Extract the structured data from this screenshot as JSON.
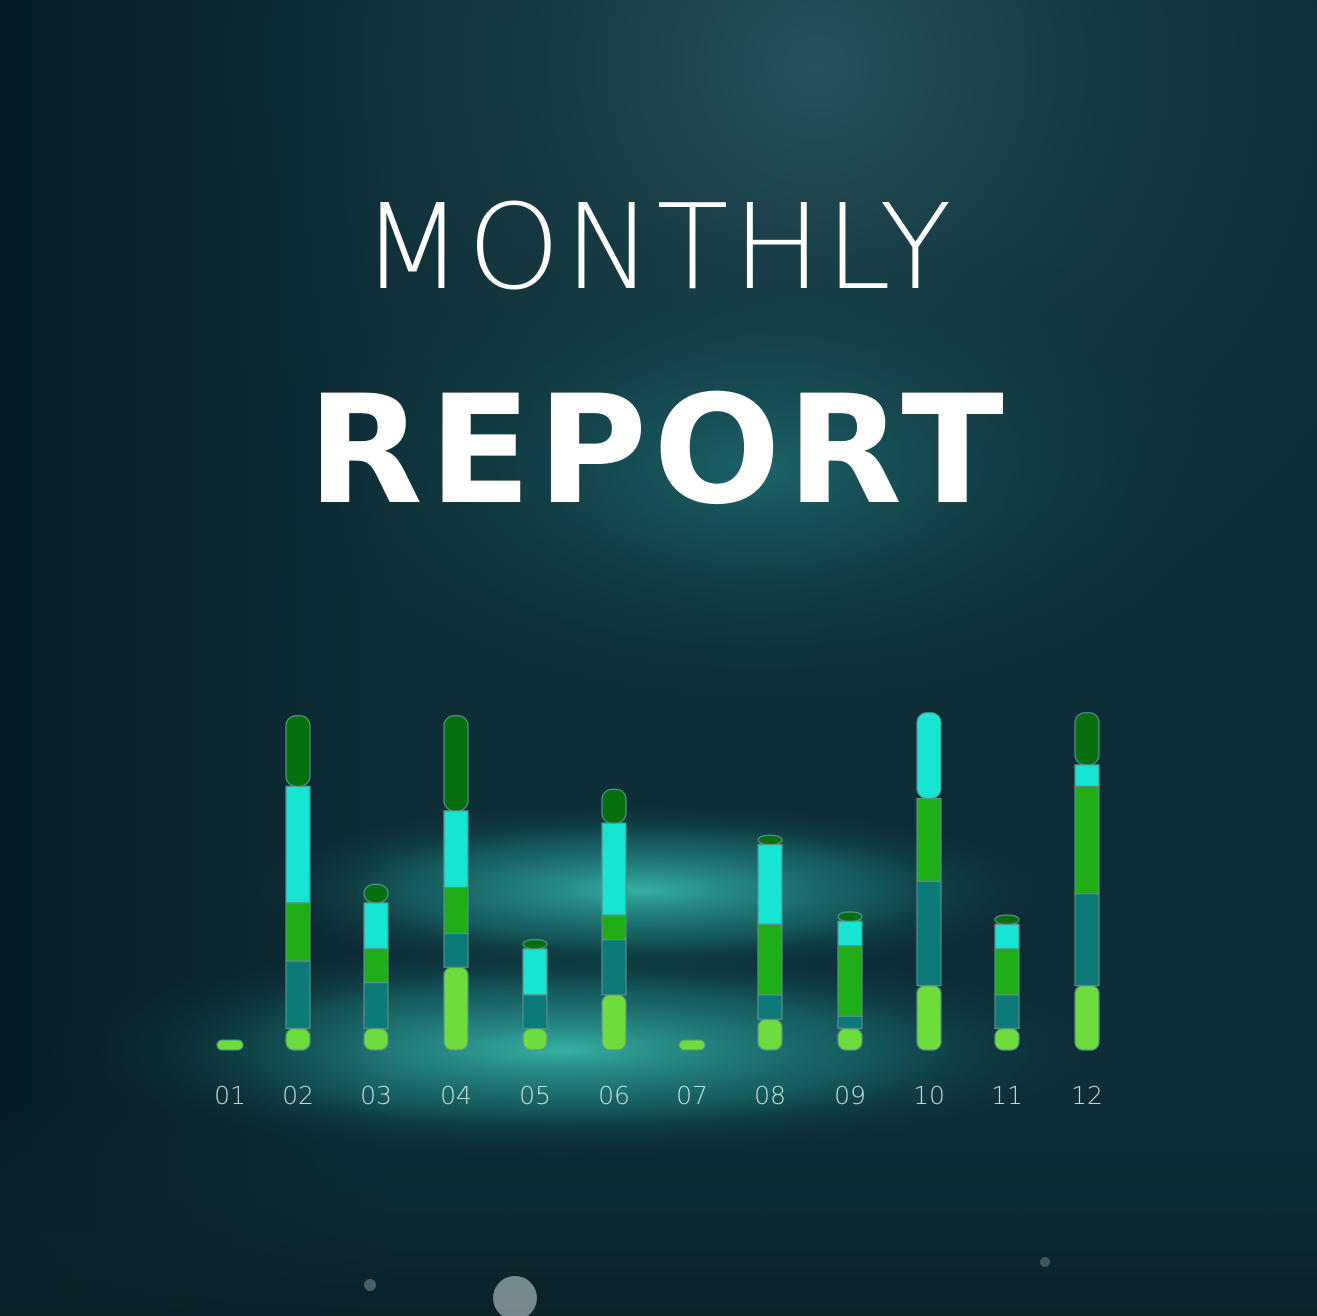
{
  "header": {
    "line1": "MONTHLY",
    "line2": "REPORT"
  },
  "colors": {
    "background": "#0b2a33",
    "glow": "#2bb3a3",
    "segment_light_green": "#6cdd3c",
    "segment_teal": "#0c7a78",
    "segment_green": "#1fae18",
    "segment_cyan": "#17e5d2",
    "segment_dark_green": "#06700f",
    "tick_label": "#e6f2f2"
  },
  "chart_data": {
    "type": "bar",
    "stacked": true,
    "categories": [
      "01",
      "02",
      "03",
      "04",
      "05",
      "06",
      "07",
      "08",
      "09",
      "10",
      "11",
      "12"
    ],
    "ylim": [
      0,
      12
    ],
    "series": [
      {
        "color": "#6cdd3c",
        "values": [
          0.2,
          0.7,
          0.7,
          2.7,
          0.7,
          1.8,
          0.2,
          1.0,
          0.7,
          2.1,
          0.7,
          2.1
        ]
      },
      {
        "color": "#0c7a78",
        "values": [
          0,
          2.2,
          1.5,
          1.1,
          1.1,
          1.8,
          0,
          0.8,
          0.4,
          3.4,
          1.1,
          3.0
        ]
      },
      {
        "color": "#1fae18",
        "values": [
          0,
          1.9,
          1.1,
          1.5,
          0,
          0.8,
          0,
          2.3,
          2.3,
          2.7,
          1.5,
          3.5
        ]
      },
      {
        "color": "#17e5d2",
        "values": [
          0,
          3.8,
          1.5,
          2.5,
          1.5,
          3.0,
          0,
          2.6,
          0.8,
          2.8,
          0.8,
          0.7
        ]
      },
      {
        "color": "#06700f",
        "values": [
          0,
          2.3,
          0.6,
          3.1,
          0.3,
          1.1,
          0,
          0.3,
          0.3,
          0,
          0.3,
          1.7
        ]
      }
    ]
  }
}
